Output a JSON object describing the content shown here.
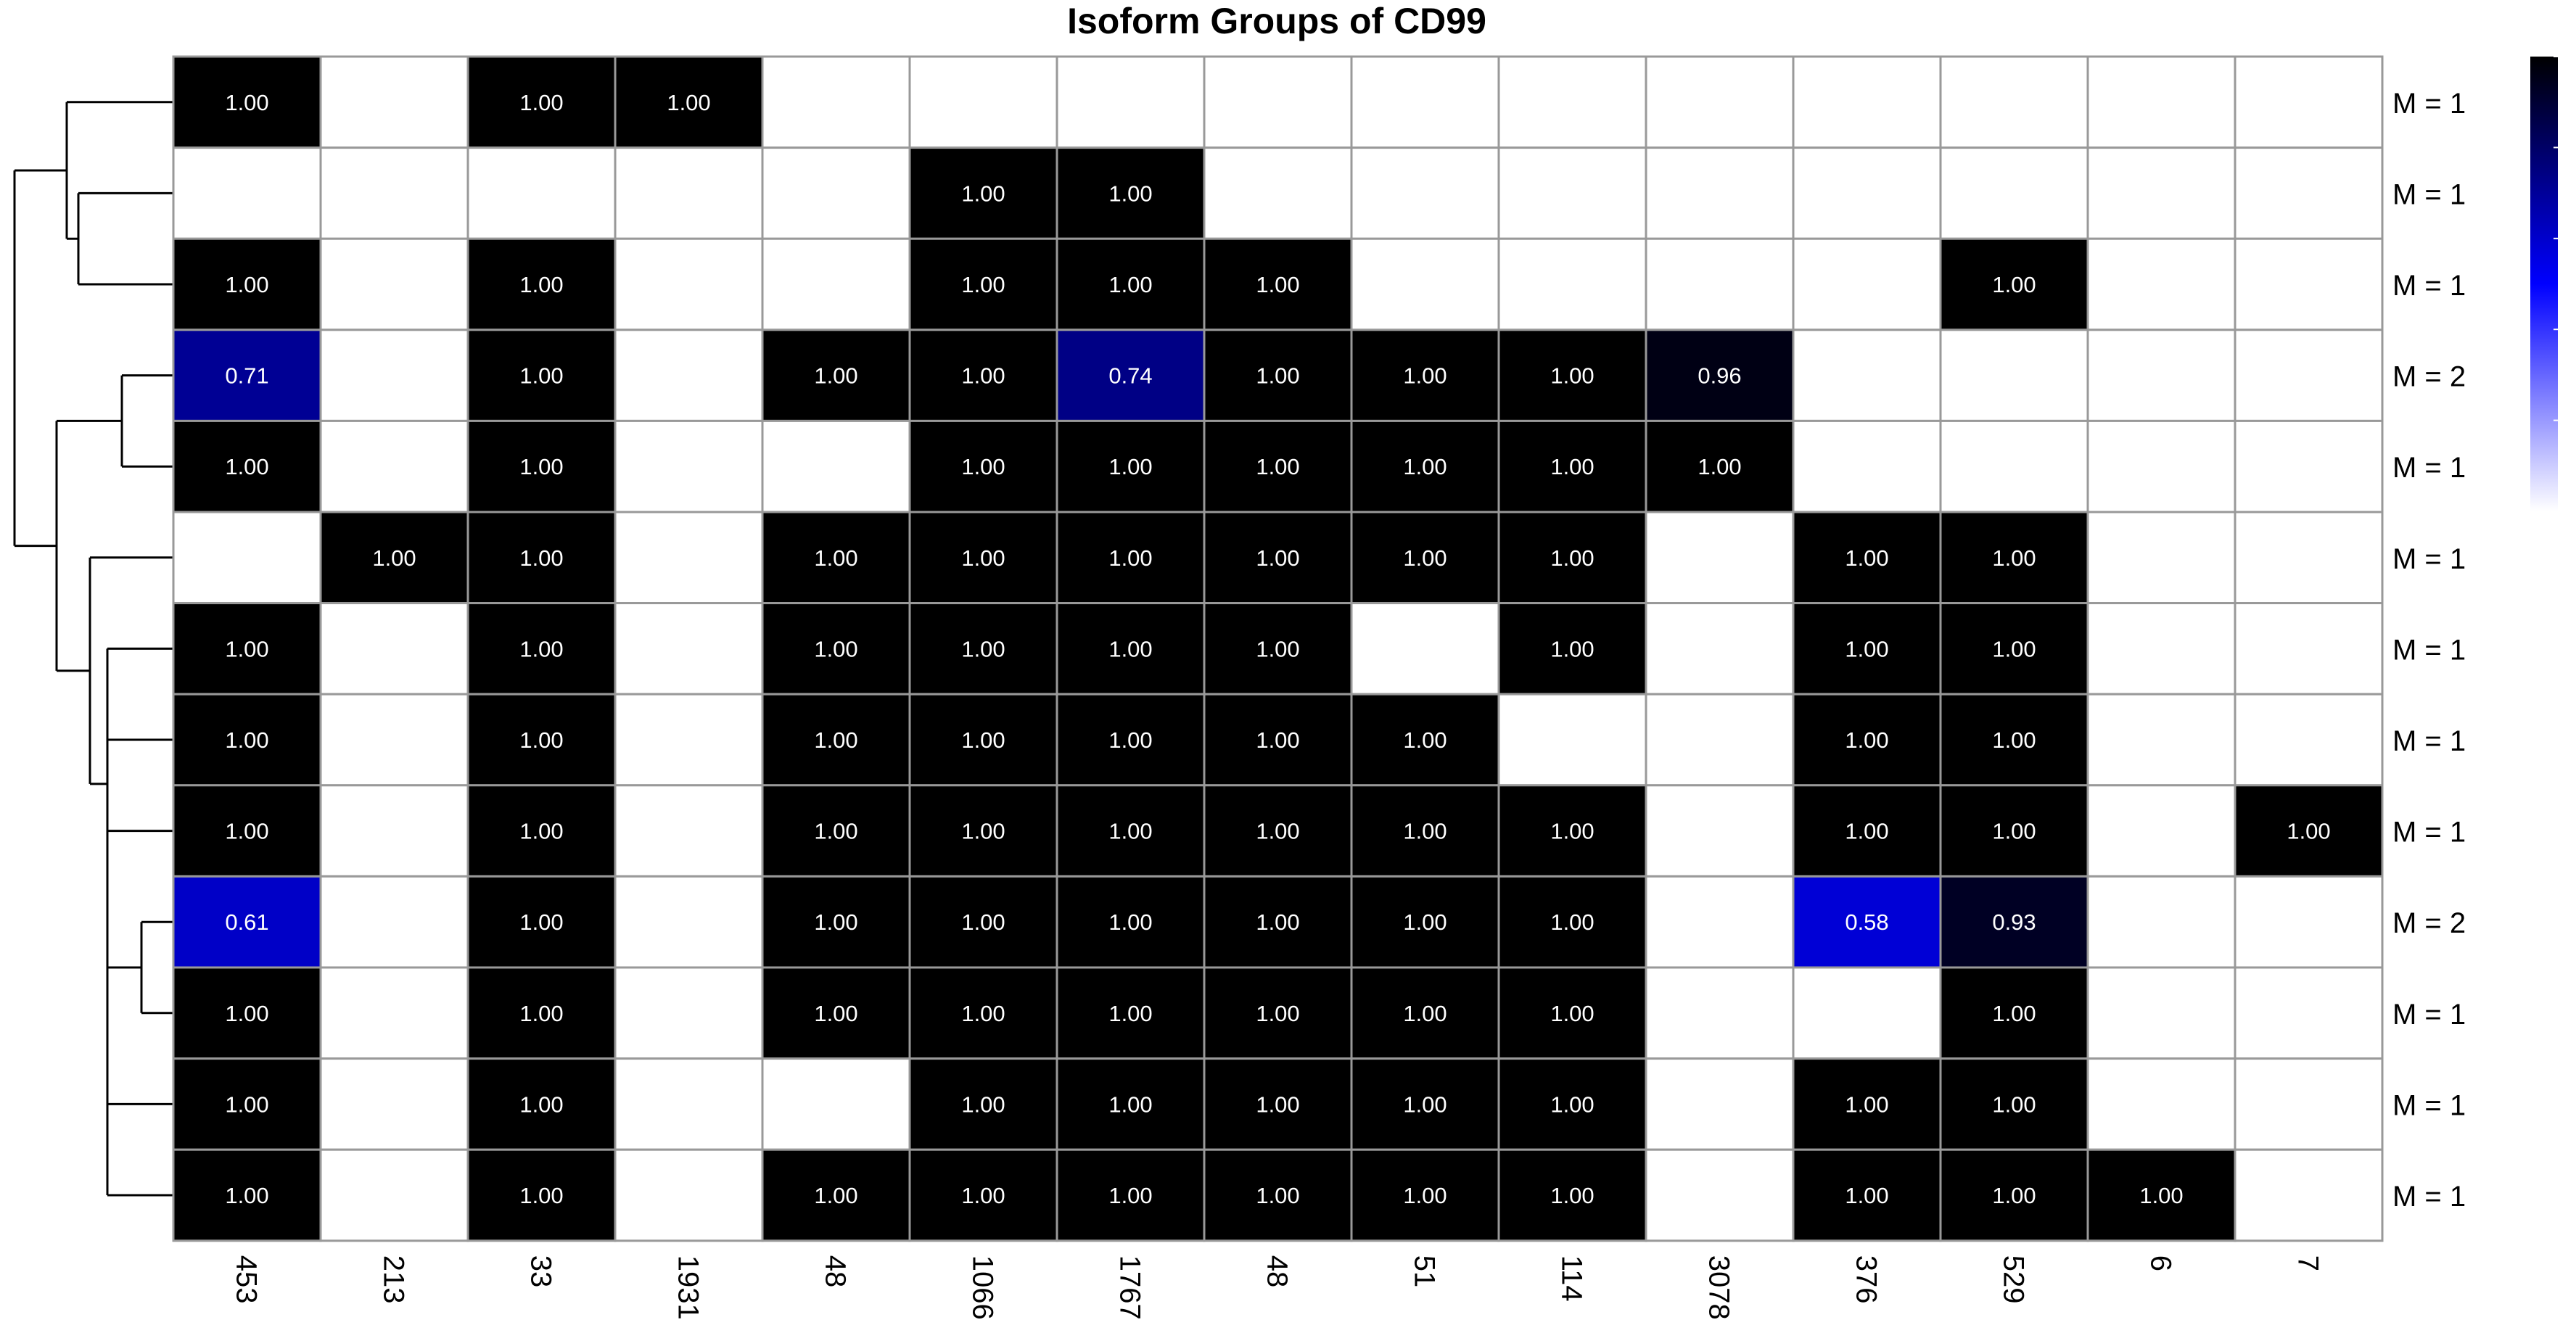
{
  "chart_data": {
    "type": "heatmap",
    "title": "Isoform Groups of CD99",
    "columns": [
      "453",
      "213",
      "33",
      "1931",
      "48",
      "1066",
      "1767",
      "48",
      "51",
      "114",
      "3078",
      "376",
      "529",
      "6",
      "7"
    ],
    "row_labels": [
      "M = 1",
      "M = 1",
      "M = 1",
      "M = 2",
      "M = 1",
      "M = 1",
      "M = 1",
      "M = 1",
      "M = 1",
      "M = 2",
      "M = 1",
      "M = 1",
      "M = 1"
    ],
    "values": [
      [
        1.0,
        null,
        1.0,
        1.0,
        null,
        null,
        null,
        null,
        null,
        null,
        null,
        null,
        null,
        null,
        null
      ],
      [
        null,
        null,
        null,
        null,
        null,
        1.0,
        1.0,
        null,
        null,
        null,
        null,
        null,
        null,
        null,
        null
      ],
      [
        1.0,
        null,
        1.0,
        null,
        null,
        1.0,
        1.0,
        1.0,
        null,
        null,
        null,
        null,
        1.0,
        null,
        null
      ],
      [
        0.71,
        null,
        1.0,
        null,
        1.0,
        1.0,
        0.74,
        1.0,
        1.0,
        1.0,
        0.96,
        null,
        null,
        null,
        null
      ],
      [
        1.0,
        null,
        1.0,
        null,
        null,
        1.0,
        1.0,
        1.0,
        1.0,
        1.0,
        1.0,
        null,
        null,
        null,
        null
      ],
      [
        null,
        1.0,
        1.0,
        null,
        1.0,
        1.0,
        1.0,
        1.0,
        1.0,
        1.0,
        null,
        1.0,
        1.0,
        null,
        null
      ],
      [
        1.0,
        null,
        1.0,
        null,
        1.0,
        1.0,
        1.0,
        1.0,
        null,
        1.0,
        null,
        1.0,
        1.0,
        null,
        null
      ],
      [
        1.0,
        null,
        1.0,
        null,
        1.0,
        1.0,
        1.0,
        1.0,
        1.0,
        null,
        null,
        1.0,
        1.0,
        null,
        null
      ],
      [
        1.0,
        null,
        1.0,
        null,
        1.0,
        1.0,
        1.0,
        1.0,
        1.0,
        1.0,
        null,
        1.0,
        1.0,
        null,
        1.0
      ],
      [
        0.61,
        null,
        1.0,
        null,
        1.0,
        1.0,
        1.0,
        1.0,
        1.0,
        1.0,
        null,
        0.58,
        0.93,
        null,
        null
      ],
      [
        1.0,
        null,
        1.0,
        null,
        1.0,
        1.0,
        1.0,
        1.0,
        1.0,
        1.0,
        null,
        null,
        1.0,
        null,
        null
      ],
      [
        1.0,
        null,
        1.0,
        null,
        null,
        1.0,
        1.0,
        1.0,
        1.0,
        1.0,
        null,
        1.0,
        1.0,
        null,
        null
      ],
      [
        1.0,
        null,
        1.0,
        null,
        1.0,
        1.0,
        1.0,
        1.0,
        1.0,
        1.0,
        null,
        1.0,
        1.0,
        1.0,
        null
      ]
    ],
    "color_scale": {
      "range": [
        0,
        1
      ],
      "ticks": [
        "0",
        "0.2",
        "0.4",
        "0.6",
        "0.8",
        "1"
      ],
      "low_color": "#ffffff",
      "mid_color": "#0000ff",
      "high_color": "#000000"
    },
    "dendrogram": "row",
    "legend_position": "top-right",
    "grid": true,
    "colors": {
      "cell_border": "#999999",
      "cell_label": "#ffffff",
      "text": "#000000"
    }
  }
}
